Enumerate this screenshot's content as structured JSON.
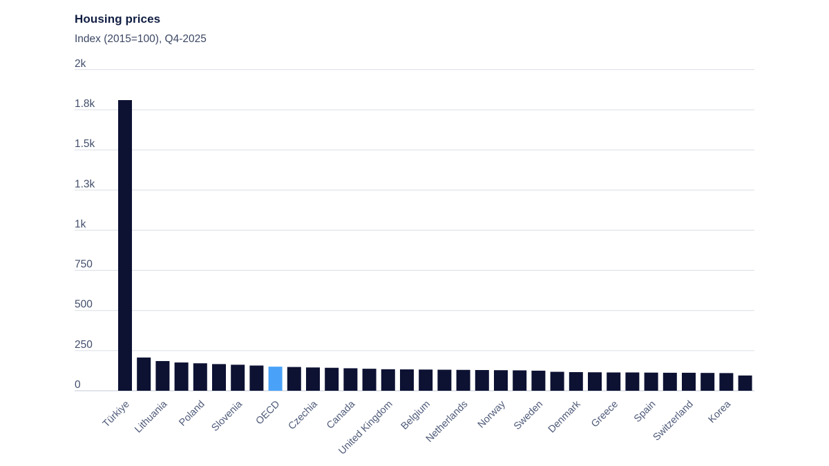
{
  "header": {
    "title": "Housing prices",
    "subtitle": "Index (2015=100), Q4-2025"
  },
  "colors": {
    "bar": "#0d1233",
    "highlight_bar": "#49a2f8",
    "gridline": "#d9dde5",
    "baseline": "#c2c9d6",
    "title_text": "#101d42",
    "subtitle_text": "#3b4763",
    "y_tick_text": "#414d6b",
    "x_tick_text": "#4e5a78"
  },
  "chart_data": {
    "type": "bar",
    "title": "Housing prices",
    "subtitle": "Index (2015=100), Q4-2025",
    "xlabel": "",
    "ylabel": "",
    "ylim": [
      0,
      2000
    ],
    "grid": true,
    "legend": "none",
    "note": "34 bars sorted descending; only every other bar is labeled; OECD bar highlighted in blue",
    "yticks": [
      {
        "value": 0,
        "label": "0"
      },
      {
        "value": 250,
        "label": "250"
      },
      {
        "value": 500,
        "label": "500"
      },
      {
        "value": 750,
        "label": "750"
      },
      {
        "value": 1000,
        "label": "1k"
      },
      {
        "value": 1250,
        "label": "1.3k"
      },
      {
        "value": 1500,
        "label": "1.5k"
      },
      {
        "value": 1750,
        "label": "1.8k"
      },
      {
        "value": 2000,
        "label": "2k"
      }
    ],
    "bars": [
      {
        "label": "Türkiye",
        "value": 1810
      },
      {
        "label": "",
        "value": 207
      },
      {
        "label": "Lithuania",
        "value": 185
      },
      {
        "label": "",
        "value": 176
      },
      {
        "label": "Poland",
        "value": 171
      },
      {
        "label": "",
        "value": 166
      },
      {
        "label": "Slovenia",
        "value": 162
      },
      {
        "label": "",
        "value": 157
      },
      {
        "label": "OECD",
        "value": 150,
        "highlight": true
      },
      {
        "label": "",
        "value": 148
      },
      {
        "label": "Czechia",
        "value": 145
      },
      {
        "label": "",
        "value": 143
      },
      {
        "label": "Canada",
        "value": 140
      },
      {
        "label": "",
        "value": 137
      },
      {
        "label": "United Kingdom",
        "value": 134
      },
      {
        "label": "",
        "value": 133
      },
      {
        "label": "Belgium",
        "value": 132
      },
      {
        "label": "",
        "value": 131
      },
      {
        "label": "Netherlands",
        "value": 130
      },
      {
        "label": "",
        "value": 129
      },
      {
        "label": "Norway",
        "value": 128
      },
      {
        "label": "",
        "value": 127
      },
      {
        "label": "Sweden",
        "value": 125
      },
      {
        "label": "",
        "value": 118
      },
      {
        "label": "Denmark",
        "value": 116
      },
      {
        "label": "",
        "value": 115
      },
      {
        "label": "Greece",
        "value": 114
      },
      {
        "label": "",
        "value": 114
      },
      {
        "label": "Spain",
        "value": 113
      },
      {
        "label": "",
        "value": 112
      },
      {
        "label": "Switzerland",
        "value": 112
      },
      {
        "label": "",
        "value": 111
      },
      {
        "label": "Korea",
        "value": 110
      },
      {
        "label": "",
        "value": 95
      }
    ]
  }
}
